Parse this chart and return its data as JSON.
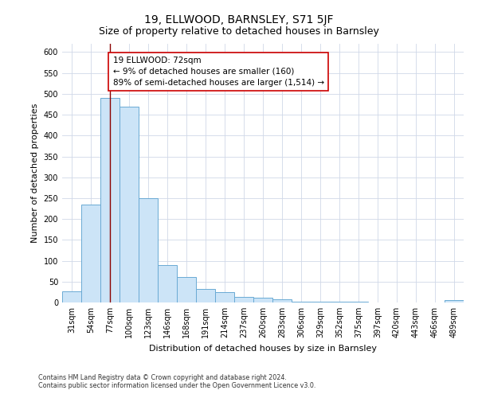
{
  "title": "19, ELLWOOD, BARNSLEY, S71 5JF",
  "subtitle": "Size of property relative to detached houses in Barnsley",
  "xlabel": "Distribution of detached houses by size in Barnsley",
  "ylabel": "Number of detached properties",
  "bar_labels": [
    "31sqm",
    "54sqm",
    "77sqm",
    "100sqm",
    "123sqm",
    "146sqm",
    "168sqm",
    "191sqm",
    "214sqm",
    "237sqm",
    "260sqm",
    "283sqm",
    "306sqm",
    "329sqm",
    "352sqm",
    "375sqm",
    "397sqm",
    "420sqm",
    "443sqm",
    "466sqm",
    "489sqm"
  ],
  "bar_values": [
    27,
    235,
    490,
    470,
    250,
    90,
    62,
    33,
    24,
    14,
    11,
    8,
    2,
    1,
    1,
    1,
    0,
    0,
    0,
    0,
    5
  ],
  "bar_color": "#cce4f7",
  "bar_edge_color": "#6aaad4",
  "vline_x_index": 2,
  "vline_color": "#8b0000",
  "annotation_text": "19 ELLWOOD: 72sqm\n← 9% of detached houses are smaller (160)\n89% of semi-detached houses are larger (1,514) →",
  "annotation_box_color": "#ffffff",
  "annotation_box_edge_color": "#cc0000",
  "ylim": [
    0,
    620
  ],
  "yticks": [
    0,
    50,
    100,
    150,
    200,
    250,
    300,
    350,
    400,
    450,
    500,
    550,
    600
  ],
  "footer_line1": "Contains HM Land Registry data © Crown copyright and database right 2024.",
  "footer_line2": "Contains public sector information licensed under the Open Government Licence v3.0.",
  "bg_color": "#ffffff",
  "grid_color": "#d0d8e8",
  "title_fontsize": 10,
  "subtitle_fontsize": 9,
  "axis_label_fontsize": 8,
  "tick_fontsize": 7,
  "annotation_fontsize": 7.5
}
